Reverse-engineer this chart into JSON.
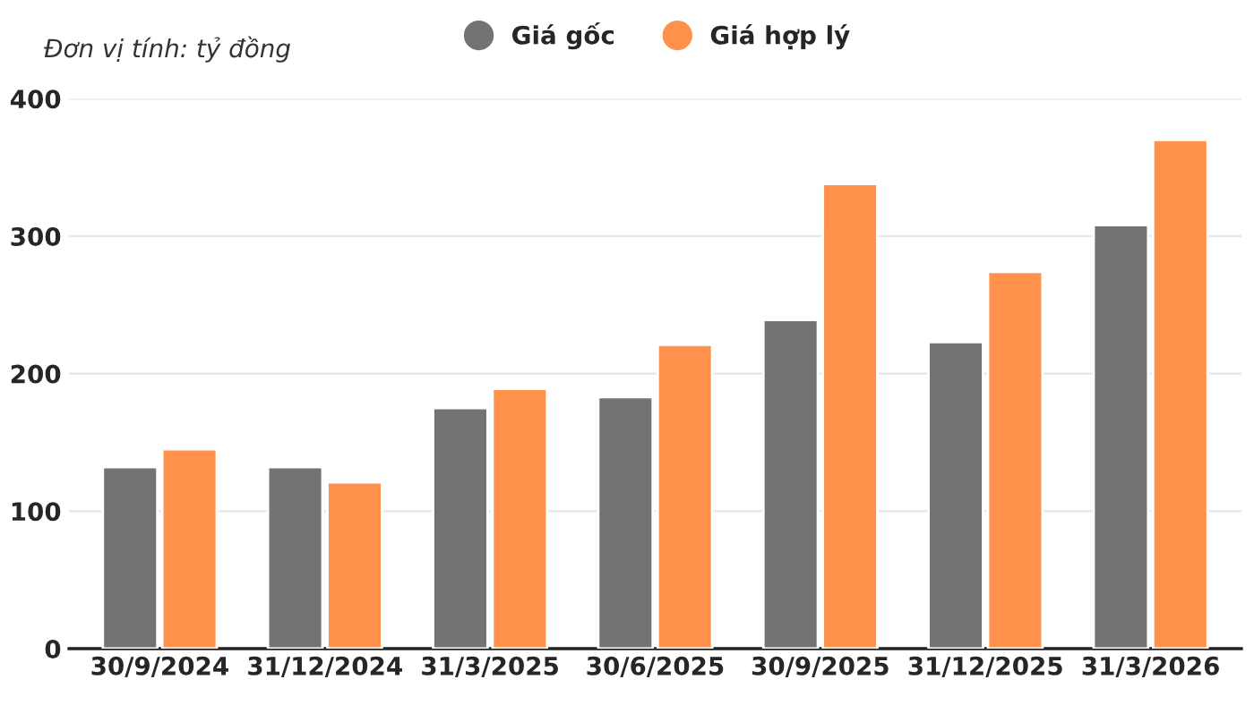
{
  "chart_data": {
    "type": "bar",
    "ylabel": "Đơn vị tính: tỷ đồng",
    "categories": [
      "30/9/2024",
      "31/12/2024",
      "31/3/2025",
      "30/6/2025",
      "30/9/2025",
      "31/12/2025",
      "31/3/2026"
    ],
    "series": [
      {
        "name": "Giá gốc",
        "color": "#737373",
        "values": [
          132,
          132,
          175,
          183,
          239,
          223,
          308
        ]
      },
      {
        "name": "Giá hợp lý",
        "color": "#ff914d",
        "values": [
          145,
          121,
          189,
          221,
          338,
          274,
          370
        ]
      }
    ],
    "ylim": [
      0,
      400
    ],
    "yticks": [
      0,
      100,
      200,
      300,
      400
    ],
    "grid": "y",
    "legend": "top"
  }
}
